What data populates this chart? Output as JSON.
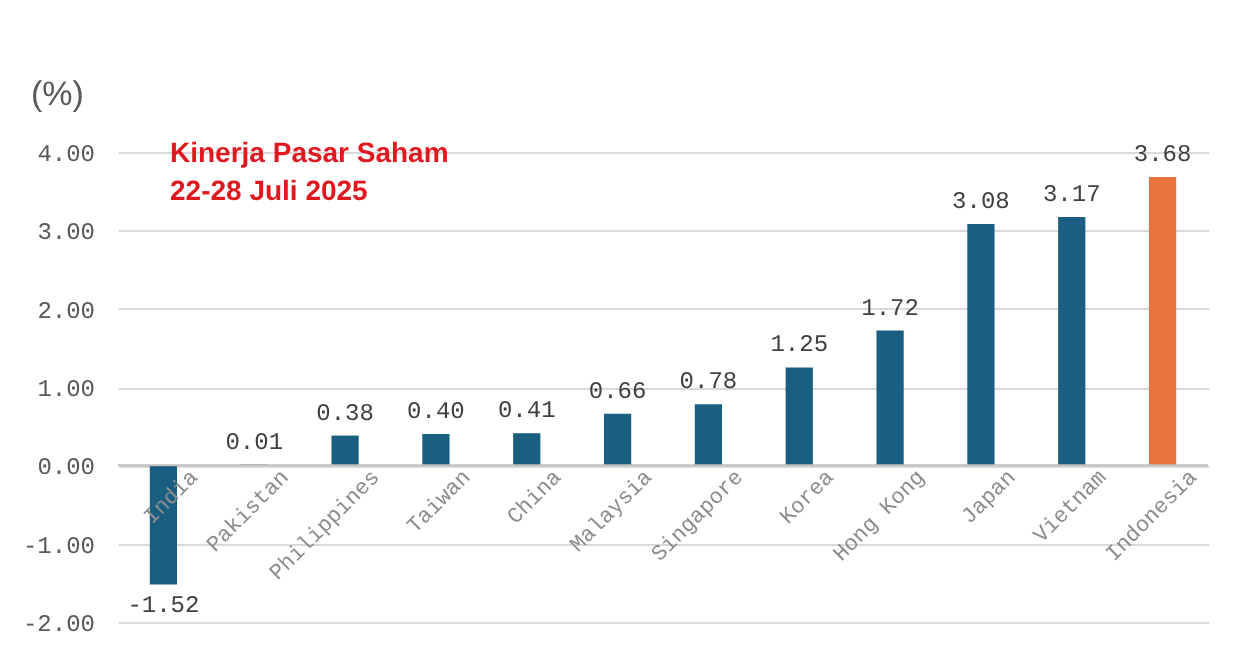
{
  "chart_data": {
    "type": "bar",
    "title": [
      "Kinerja Pasar Saham",
      "22-28 Juli 2025"
    ],
    "ylabel": "(%)",
    "categories": [
      "India",
      "Pakistan",
      "Philippines",
      "Taiwan",
      "China",
      "Malaysia",
      "Singapore",
      "Korea",
      "Hong Kong",
      "Japan",
      "Vietnam",
      "Indonesia"
    ],
    "values": [
      -1.52,
      0.01,
      0.38,
      0.4,
      0.41,
      0.66,
      0.78,
      1.25,
      1.72,
      3.08,
      3.17,
      3.68
    ],
    "colors": [
      "#1a5f82",
      "#1a5f82",
      "#1a5f82",
      "#1a5f82",
      "#1a5f82",
      "#1a5f82",
      "#1a5f82",
      "#1a5f82",
      "#1a5f82",
      "#1a5f82",
      "#1a5f82",
      "#e8743b"
    ],
    "value_labels": [
      "-1.52",
      "0.01",
      "0.38",
      "0.40",
      "0.41",
      "0.66",
      "0.78",
      "1.25",
      "1.72",
      "3.08",
      "3.17",
      "3.68"
    ],
    "ylim": [
      -2,
      4
    ],
    "yticks": [
      {
        "value": -2,
        "label": "-2.00"
      },
      {
        "value": -1,
        "label": "-1.00"
      },
      {
        "value": 0,
        "label": "0.00"
      },
      {
        "value": 1,
        "label": "1.00"
      },
      {
        "value": 2,
        "label": "2.00"
      },
      {
        "value": 3,
        "label": "3.00"
      },
      {
        "value": 4,
        "label": "4.00"
      }
    ],
    "grid": "y"
  }
}
